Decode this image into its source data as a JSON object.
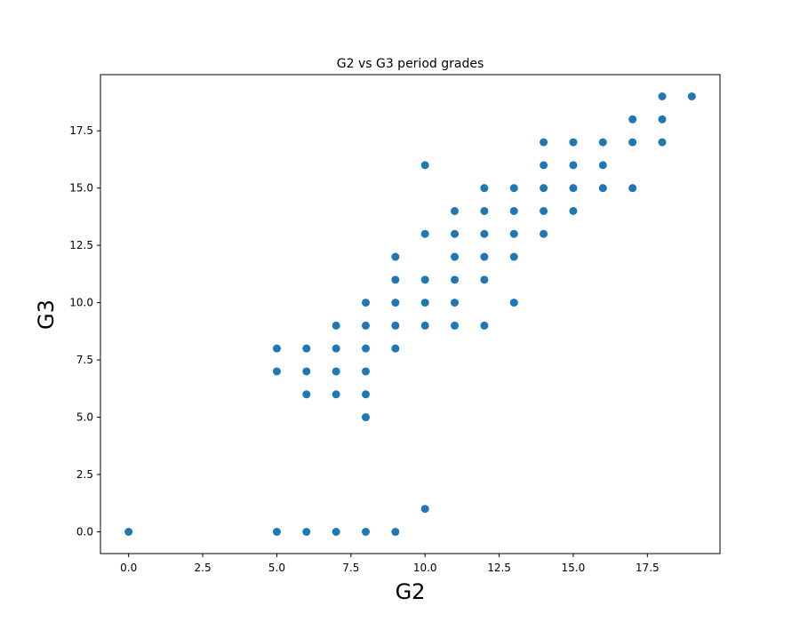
{
  "chart_data": {
    "type": "scatter",
    "title": "G2 vs G3 period grades",
    "xlabel": "G2",
    "ylabel": "G3",
    "xlim": [
      -0.95,
      19.95
    ],
    "ylim": [
      -0.95,
      19.95
    ],
    "xticks": [
      0.0,
      2.5,
      5.0,
      7.5,
      10.0,
      12.5,
      15.0,
      17.5
    ],
    "yticks": [
      0.0,
      2.5,
      5.0,
      7.5,
      10.0,
      12.5,
      15.0,
      17.5
    ],
    "xtick_labels": [
      "0.0",
      "2.5",
      "5.0",
      "7.5",
      "10.0",
      "12.5",
      "15.0",
      "17.5"
    ],
    "ytick_labels": [
      "0.0",
      "2.5",
      "5.0",
      "7.5",
      "10.0",
      "12.5",
      "15.0",
      "17.5"
    ],
    "grid": false,
    "marker_color": "#1f77b4",
    "series": [
      {
        "points": [
          [
            0,
            0
          ],
          [
            5,
            0
          ],
          [
            5,
            7
          ],
          [
            5,
            8
          ],
          [
            6,
            0
          ],
          [
            6,
            6
          ],
          [
            6,
            7
          ],
          [
            6,
            8
          ],
          [
            7,
            0
          ],
          [
            7,
            6
          ],
          [
            7,
            7
          ],
          [
            7,
            8
          ],
          [
            7,
            9
          ],
          [
            8,
            0
          ],
          [
            8,
            5
          ],
          [
            8,
            6
          ],
          [
            8,
            7
          ],
          [
            8,
            8
          ],
          [
            8,
            9
          ],
          [
            8,
            10
          ],
          [
            9,
            0
          ],
          [
            9,
            8
          ],
          [
            9,
            9
          ],
          [
            9,
            10
          ],
          [
            9,
            11
          ],
          [
            9,
            12
          ],
          [
            10,
            1
          ],
          [
            10,
            9
          ],
          [
            10,
            10
          ],
          [
            10,
            11
          ],
          [
            10,
            13
          ],
          [
            10,
            16
          ],
          [
            11,
            9
          ],
          [
            11,
            10
          ],
          [
            11,
            11
          ],
          [
            11,
            12
          ],
          [
            11,
            13
          ],
          [
            11,
            14
          ],
          [
            12,
            9
          ],
          [
            12,
            11
          ],
          [
            12,
            12
          ],
          [
            12,
            13
          ],
          [
            12,
            14
          ],
          [
            12,
            15
          ],
          [
            13,
            10
          ],
          [
            13,
            12
          ],
          [
            13,
            13
          ],
          [
            13,
            14
          ],
          [
            13,
            15
          ],
          [
            14,
            13
          ],
          [
            14,
            14
          ],
          [
            14,
            15
          ],
          [
            14,
            16
          ],
          [
            14,
            17
          ],
          [
            15,
            14
          ],
          [
            15,
            15
          ],
          [
            15,
            16
          ],
          [
            15,
            17
          ],
          [
            16,
            15
          ],
          [
            16,
            16
          ],
          [
            16,
            17
          ],
          [
            17,
            15
          ],
          [
            17,
            17
          ],
          [
            17,
            18
          ],
          [
            18,
            17
          ],
          [
            18,
            18
          ],
          [
            18,
            19
          ],
          [
            19,
            19
          ]
        ]
      }
    ]
  }
}
